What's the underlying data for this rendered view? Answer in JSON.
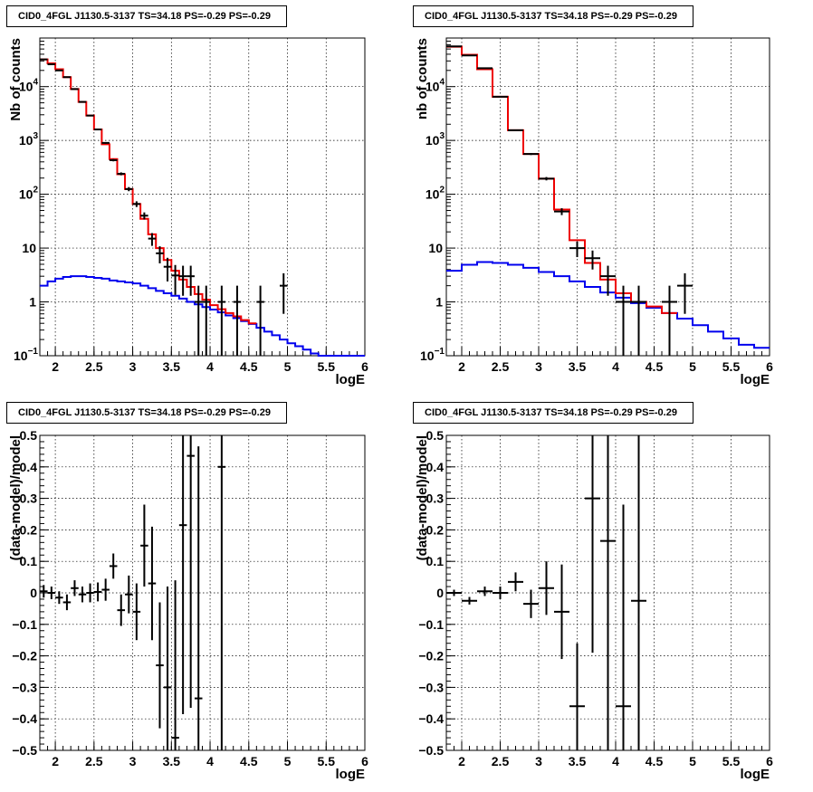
{
  "chart_data": [
    {
      "type": "histogram",
      "title": "CID0_4FGL J1130.5-3137 TS=34.18 PS=-0.29 PS=-0.29",
      "xlabel": "logE",
      "ylabel": "Nb of counts",
      "xlim": [
        1.8,
        6.0
      ],
      "ylim": [
        0.1,
        80000
      ],
      "yscale": "log",
      "grid": true,
      "xticks": [
        "2",
        "2.5",
        "3",
        "3.5",
        "4",
        "4.5",
        "5",
        "5.5",
        "6"
      ],
      "yticks": [
        {
          "v": 0.1,
          "base": "10",
          "exp": "−1"
        },
        {
          "v": 1,
          "label": "1"
        },
        {
          "v": 10,
          "label": "10"
        },
        {
          "v": 100,
          "base": "10",
          "exp": "2"
        },
        {
          "v": 1000,
          "base": "10",
          "exp": "3"
        },
        {
          "v": 10000,
          "base": "10",
          "exp": "4"
        }
      ],
      "bin_edges": [
        1.8,
        1.9,
        2.0,
        2.1,
        2.2,
        2.3,
        2.4,
        2.5,
        2.6,
        2.7,
        2.8,
        2.9,
        3.0,
        3.1,
        3.2,
        3.3,
        3.4,
        3.5,
        3.6,
        3.7,
        3.8,
        3.9,
        4.0,
        4.1,
        4.2,
        4.3,
        4.4,
        4.5,
        4.6,
        4.7,
        4.8,
        4.9,
        5.0,
        5.1,
        5.2,
        5.3,
        5.4,
        5.5,
        5.6,
        5.7,
        5.8,
        5.9,
        6.0
      ],
      "series": [
        {
          "name": "",
          "kind": "step",
          "color": "#0000ee",
          "values": [
            2.0,
            2.4,
            2.7,
            2.9,
            3.0,
            3.0,
            2.9,
            2.8,
            2.7,
            2.5,
            2.4,
            2.3,
            2.2,
            2.0,
            1.8,
            1.6,
            1.45,
            1.3,
            1.15,
            1.0,
            0.9,
            0.8,
            0.72,
            0.64,
            0.56,
            0.5,
            0.44,
            0.39,
            0.33,
            0.28,
            0.24,
            0.2,
            0.17,
            0.15,
            0.13,
            0.11,
            0.1,
            0.1,
            0.1,
            0.1,
            0.1,
            0.1
          ]
        },
        {
          "name": "",
          "kind": "step",
          "color": "#ee0000",
          "values": [
            32000,
            27000,
            21000,
            15000,
            9000,
            5200,
            2900,
            1600,
            850,
            450,
            235,
            125,
            66,
            35,
            18,
            10,
            6.0,
            3.8,
            2.6,
            1.9,
            1.4,
            1.1,
            0.87,
            0.73,
            0.62,
            0.54,
            0.46,
            0.4,
            null,
            null,
            null,
            null,
            null,
            null,
            null,
            null,
            null,
            null,
            null,
            null,
            null,
            null
          ]
        },
        {
          "name": "",
          "kind": "points",
          "color": "#000000",
          "x": [
            1.85,
            1.95,
            2.05,
            2.15,
            2.25,
            2.35,
            2.45,
            2.55,
            2.65,
            2.75,
            2.85,
            2.95,
            3.05,
            3.15,
            3.25,
            3.35,
            3.45,
            3.55,
            3.65,
            3.75,
            3.85,
            3.95,
            4.15,
            4.35,
            4.65,
            4.95
          ],
          "y": [
            32000,
            26000,
            20000,
            15000,
            9000,
            5200,
            2900,
            1600,
            900,
            430,
            240,
            125,
            66,
            40,
            15,
            8,
            4.5,
            3.1,
            3.0,
            3.0,
            1.0,
            1.0,
            1.0,
            1.0,
            1.0,
            2.0
          ],
          "xerr": [
            0.05,
            0.05,
            0.05,
            0.05,
            0.05,
            0.05,
            0.05,
            0.05,
            0.05,
            0.05,
            0.05,
            0.05,
            0.05,
            0.05,
            0.05,
            0.05,
            0.05,
            0.05,
            0.05,
            0.05,
            0.05,
            0.05,
            0.05,
            0.05,
            0.05,
            0.05
          ],
          "yerr_lo": [
            180,
            160,
            140,
            120,
            95,
            72,
            54,
            40,
            30,
            21,
            15,
            11,
            8,
            6,
            4,
            2.8,
            2.1,
            1.75,
            1.7,
            1.7,
            1.0,
            1.0,
            1.0,
            1.0,
            1.0,
            1.4
          ],
          "yerr_hi": [
            180,
            160,
            140,
            120,
            95,
            72,
            54,
            40,
            30,
            21,
            15,
            11,
            8,
            6,
            4,
            2.8,
            2.1,
            1.75,
            1.7,
            1.7,
            1.0,
            1.0,
            1.0,
            1.0,
            1.0,
            1.4
          ]
        }
      ]
    },
    {
      "type": "histogram",
      "title": "CID0_4FGL J1130.5-3137 TS=34.18 PS=-0.29 PS=-0.29",
      "xlabel": "logE",
      "ylabel": "nb of counts",
      "xlim": [
        1.8,
        6.0
      ],
      "ylim": [
        0.1,
        80000
      ],
      "yscale": "log",
      "grid": true,
      "xticks": [
        "2",
        "2.5",
        "3",
        "3.5",
        "4",
        "4.5",
        "5",
        "5.5",
        "6"
      ],
      "yticks": [
        {
          "v": 0.1,
          "base": "10",
          "exp": "−1"
        },
        {
          "v": 1,
          "label": "1"
        },
        {
          "v": 10,
          "label": "10"
        },
        {
          "v": 100,
          "base": "10",
          "exp": "2"
        },
        {
          "v": 1000,
          "base": "10",
          "exp": "3"
        },
        {
          "v": 10000,
          "base": "10",
          "exp": "4"
        }
      ],
      "bin_edges": [
        1.8,
        2.0,
        2.2,
        2.4,
        2.6,
        2.8,
        3.0,
        3.2,
        3.4,
        3.6,
        3.8,
        4.0,
        4.2,
        4.4,
        4.6,
        4.8,
        5.0,
        5.2,
        5.4,
        5.6,
        5.8,
        6.0
      ],
      "series": [
        {
          "name": "",
          "kind": "step",
          "color": "#0000ee",
          "values": [
            3.8,
            4.9,
            5.5,
            5.3,
            4.9,
            4.3,
            3.6,
            3.0,
            2.4,
            1.9,
            1.5,
            1.2,
            0.95,
            0.78,
            0.62,
            0.49,
            0.37,
            0.28,
            0.21,
            0.16,
            0.14
          ]
        },
        {
          "name": "",
          "kind": "step",
          "color": "#ee0000",
          "values": [
            55000,
            39000,
            21000,
            6500,
            1550,
            560,
            195,
            52,
            14,
            5.3,
            2.6,
            1.45,
            1.0,
            0.82,
            0.62,
            null,
            null,
            null,
            null,
            null,
            null
          ]
        },
        {
          "name": "",
          "kind": "points",
          "color": "#000000",
          "x": [
            1.9,
            2.1,
            2.3,
            2.5,
            2.7,
            2.9,
            3.1,
            3.3,
            3.5,
            3.7,
            3.9,
            4.1,
            4.3,
            4.7,
            4.9
          ],
          "y": [
            56000,
            38000,
            22000,
            6500,
            1550,
            560,
            195,
            48,
            10,
            6.5,
            3.0,
            1.0,
            1.0,
            1.0,
            2.0
          ],
          "xerr": [
            0.1,
            0.1,
            0.1,
            0.1,
            0.1,
            0.1,
            0.1,
            0.1,
            0.1,
            0.1,
            0.1,
            0.1,
            0.1,
            0.1,
            0.1
          ],
          "yerr_lo": [
            240,
            195,
            150,
            80,
            40,
            24,
            14,
            7,
            3.2,
            2.5,
            1.7,
            1.0,
            1.0,
            1.0,
            1.4
          ],
          "yerr_hi": [
            240,
            195,
            150,
            80,
            40,
            24,
            14,
            7,
            3.2,
            2.5,
            1.7,
            1.0,
            1.0,
            1.0,
            1.4
          ]
        }
      ]
    },
    {
      "type": "scatter",
      "title": "CID0_4FGL J1130.5-3137 TS=34.18 PS=-0.29 PS=-0.29",
      "xlabel": "logE",
      "ylabel": "(data-model)/model",
      "xlim": [
        1.8,
        6.0
      ],
      "ylim": [
        -0.5,
        0.5
      ],
      "yscale": "linear",
      "grid": true,
      "xticks": [
        "2",
        "2.5",
        "3",
        "3.5",
        "4",
        "4.5",
        "5",
        "5.5",
        "6"
      ],
      "yticks": [
        "−0.5",
        "−0.4",
        "−0.3",
        "−0.2",
        "−0.1",
        "0",
        "0.1",
        "0.2",
        "0.3",
        "0.4",
        "0.5"
      ],
      "series": [
        {
          "name": "",
          "kind": "points",
          "color": "#000000",
          "x": [
            1.85,
            1.95,
            2.05,
            2.15,
            2.25,
            2.35,
            2.45,
            2.55,
            2.65,
            2.75,
            2.85,
            2.95,
            3.05,
            3.15,
            3.25,
            3.35,
            3.45,
            3.55,
            3.65,
            3.75,
            3.85,
            4.15
          ],
          "y": [
            0.005,
            0.0,
            -0.015,
            -0.03,
            0.015,
            -0.005,
            0.0,
            0.003,
            0.01,
            0.085,
            -0.055,
            -0.005,
            -0.06,
            0.15,
            0.03,
            -0.23,
            -0.3,
            -0.46,
            0.215,
            0.435,
            -0.335,
            0.4
          ],
          "xerr": [
            0.05,
            0.05,
            0.05,
            0.05,
            0.05,
            0.05,
            0.05,
            0.05,
            0.05,
            0.05,
            0.05,
            0.05,
            0.05,
            0.05,
            0.05,
            0.05,
            0.05,
            0.05,
            0.05,
            0.05,
            0.05,
            0.05
          ],
          "yerr": [
            0.02,
            0.02,
            0.02,
            0.025,
            0.025,
            0.025,
            0.03,
            0.03,
            0.035,
            0.04,
            0.05,
            0.06,
            0.09,
            0.13,
            0.18,
            0.2,
            0.32,
            0.5,
            0.6,
            0.8,
            0.8,
            1.0
          ]
        }
      ]
    },
    {
      "type": "scatter",
      "title": "CID0_4FGL J1130.5-3137 TS=34.18 PS=-0.29 PS=-0.29",
      "xlabel": "logE",
      "ylabel": "(data-model)/model",
      "xlim": [
        1.8,
        6.0
      ],
      "ylim": [
        -0.5,
        0.5
      ],
      "yscale": "linear",
      "grid": true,
      "xticks": [
        "2",
        "2.5",
        "3",
        "3.5",
        "4",
        "4.5",
        "5",
        "5.5",
        "6"
      ],
      "yticks": [
        "−0.5",
        "−0.4",
        "−0.3",
        "−0.2",
        "−0.1",
        "0",
        "0.1",
        "0.2",
        "0.3",
        "0.4",
        "0.5"
      ],
      "series": [
        {
          "name": "",
          "kind": "points",
          "color": "#000000",
          "x": [
            1.9,
            2.1,
            2.3,
            2.5,
            2.7,
            2.9,
            3.1,
            3.3,
            3.5,
            3.7,
            3.9,
            4.1,
            4.3
          ],
          "y": [
            0.0,
            -0.025,
            0.005,
            0.0,
            0.035,
            -0.035,
            0.015,
            -0.06,
            -0.36,
            0.3,
            0.165,
            -0.36,
            -0.025
          ],
          "xerr": [
            0.1,
            0.1,
            0.1,
            0.1,
            0.1,
            0.1,
            0.1,
            0.1,
            0.1,
            0.1,
            0.1,
            0.1,
            0.1
          ],
          "yerr": [
            0.01,
            0.012,
            0.015,
            0.02,
            0.03,
            0.045,
            0.085,
            0.15,
            0.2,
            0.49,
            0.7,
            0.64,
            1.0
          ]
        }
      ]
    }
  ]
}
